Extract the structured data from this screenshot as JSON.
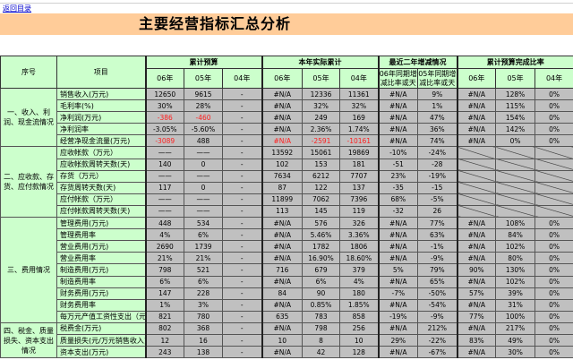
{
  "nav": {
    "back_link": "返回目录"
  },
  "title": "主要经营指标汇总分析",
  "colors": {
    "title_band": "#ffcc99",
    "header_bg": "#ccffcc",
    "cell_bg": "#c0c0c0",
    "negative": "#ff2020"
  },
  "header": {
    "seq": "序号",
    "item": "项目",
    "groups": [
      "累计预算",
      "本年实际累计",
      "最近二年增减情况",
      "累计预算完成比率"
    ],
    "years": [
      "06年",
      "05年",
      "04年",
      "06年",
      "05年",
      "04年",
      "06年同期增减比率或天",
      "05年同期增减比率或天",
      "06年",
      "05年",
      "04年"
    ]
  },
  "sections": [
    {
      "label": "一、收入、利润、现金流情况",
      "rows": [
        {
          "item": "销售收入(万元)",
          "values": [
            "12650",
            "9615",
            "-",
            "#N/A",
            "12336",
            "11361",
            "#N/A",
            "9%",
            "#N/A",
            "128%",
            "0%"
          ],
          "red": []
        },
        {
          "item": "毛利率(%)",
          "values": [
            "30%",
            "28%",
            "-",
            "#N/A",
            "32%",
            "32%",
            "#N/A",
            "1%",
            "#N/A",
            "115%",
            "0%"
          ],
          "red": []
        },
        {
          "item": "净利润(万元)",
          "values": [
            "-386",
            "-460",
            "-",
            "#N/A",
            "249",
            "169",
            "#N/A",
            "47%",
            "#N/A",
            "154%",
            "0%"
          ],
          "red": [
            0,
            1
          ]
        },
        {
          "item": "净利润率",
          "values": [
            "-3.05%",
            "-5.60%",
            "-",
            "#N/A",
            "2.36%",
            "1.74%",
            "#N/A",
            "36%",
            "#N/A",
            "142%",
            "0%"
          ],
          "red": []
        },
        {
          "item": "经营净现金流量(万元)",
          "values": [
            "-3089",
            "488",
            "-",
            "#N/A",
            "-2591",
            "-10161",
            "#N/A",
            "74%",
            "#N/A",
            "0%",
            "0%"
          ],
          "red": [
            0,
            3,
            4,
            5
          ]
        }
      ]
    },
    {
      "label": "二、应收款、存货、应付款情况",
      "rows": [
        {
          "item": "应收帐款（万元）",
          "values": [
            "——",
            "——",
            "-",
            "13592",
            "15061",
            "19869",
            "-10%",
            "-24%",
            "",
            "",
            ""
          ],
          "red": [],
          "diag": true
        },
        {
          "item": "应收帐款周转天数(天)",
          "values": [
            "140",
            "0",
            "-",
            "102",
            "153",
            "181",
            "-51",
            "-28",
            "",
            "",
            ""
          ],
          "red": [],
          "diag": true
        },
        {
          "item": "存货（万元）",
          "values": [
            "——",
            "——",
            "-",
            "7634",
            "6212",
            "7707",
            "23%",
            "-19%",
            "",
            "",
            ""
          ],
          "red": [],
          "diag": true
        },
        {
          "item": "存货周转天数(天)",
          "values": [
            "117",
            "0",
            "-",
            "87",
            "122",
            "137",
            "-35",
            "-15",
            "",
            "",
            ""
          ],
          "red": [],
          "diag": true
        },
        {
          "item": "应付帐款（万元）",
          "values": [
            "——",
            "——",
            "-",
            "11899",
            "7062",
            "7396",
            "68%",
            "-5%",
            "",
            "",
            ""
          ],
          "red": [],
          "diag": true
        },
        {
          "item": "应付帐款周转天数(天)",
          "values": [
            "——",
            "——",
            "-",
            "113",
            "145",
            "119",
            "-32",
            "26",
            "",
            "",
            ""
          ],
          "red": [],
          "diag": true
        }
      ]
    },
    {
      "label": "三、费用情况",
      "rows": [
        {
          "item": "管理费用(万元)",
          "values": [
            "448",
            "534",
            "-",
            "#N/A",
            "576",
            "326",
            "#N/A",
            "77%",
            "#N/A",
            "108%",
            "0%"
          ],
          "red": []
        },
        {
          "item": "管理费用率",
          "values": [
            "4%",
            "6%",
            "-",
            "#N/A",
            "5.46%",
            "3.36%",
            "#N/A",
            "63%",
            "#N/A",
            "84%",
            "0%"
          ],
          "red": []
        },
        {
          "item": "营业费用(万元)",
          "values": [
            "2690",
            "1739",
            "-",
            "#N/A",
            "1782",
            "1806",
            "#N/A",
            "-1%",
            "#N/A",
            "102%",
            "0%"
          ],
          "red": []
        },
        {
          "item": "营业费用率",
          "values": [
            "21%",
            "21%",
            "-",
            "#N/A",
            "16.90%",
            "18.60%",
            "#N/A",
            "-9%",
            "#N/A",
            "80%",
            "0%"
          ],
          "red": []
        },
        {
          "item": "制造费用(万元)",
          "values": [
            "798",
            "521",
            "-",
            "716",
            "679",
            "379",
            "5%",
            "79%",
            "90%",
            "130%",
            "0%"
          ],
          "red": []
        },
        {
          "item": "制造费用率",
          "values": [
            "6%",
            "6%",
            "-",
            "#N/A",
            "6%",
            "4%",
            "#N/A",
            "65%",
            "#N/A",
            "102%",
            "0%"
          ],
          "red": []
        },
        {
          "item": "财务费用(万元)",
          "values": [
            "147",
            "228",
            "-",
            "84",
            "90",
            "180",
            "-7%",
            "-50%",
            "57%",
            "39%",
            "0%"
          ],
          "red": []
        },
        {
          "item": "财务费用率",
          "values": [
            "1%",
            "3%",
            "-",
            "#N/A",
            "0.85%",
            "1.85%",
            "#N/A",
            "-54%",
            "#N/A",
            "31%",
            "0%"
          ],
          "red": []
        },
        {
          "item": "每万元产值工资性支出（元）",
          "values": [
            "821",
            "780",
            "-",
            "635",
            "783",
            "858",
            "-19%",
            "-9%",
            "77%",
            "100%",
            "0%"
          ],
          "red": []
        }
      ]
    },
    {
      "label": "四、税金、质量损失、资本支出情况",
      "rows": [
        {
          "item": "税费金(万元)",
          "values": [
            "802",
            "368",
            "-",
            "#N/A",
            "798",
            "256",
            "#N/A",
            "212%",
            "#N/A",
            "217%",
            "0%"
          ],
          "red": []
        },
        {
          "item": "质量损失(元/万元销售收入)",
          "values": [
            "12",
            "16",
            "-",
            "10",
            "8",
            "10",
            "29%",
            "-22%",
            "83%",
            "49%",
            "0%"
          ],
          "red": []
        },
        {
          "item": "资本支出(万元)",
          "values": [
            "243",
            "138",
            "-",
            "#N/A",
            "42",
            "128",
            "#N/A",
            "-67%",
            "#N/A",
            "30%",
            "0%"
          ],
          "red": []
        }
      ]
    }
  ]
}
